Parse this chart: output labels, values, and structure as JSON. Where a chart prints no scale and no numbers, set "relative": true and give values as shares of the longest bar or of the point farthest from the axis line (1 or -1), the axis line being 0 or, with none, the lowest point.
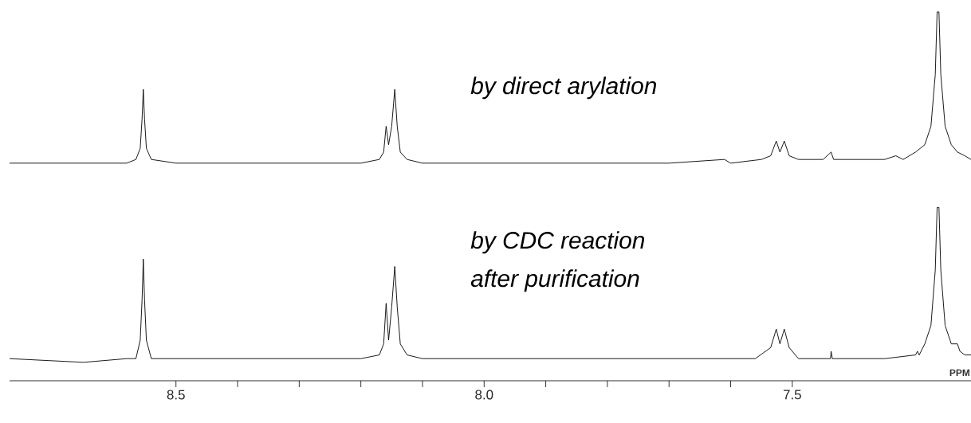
{
  "chart_data": {
    "type": "line",
    "relative": true,
    "tick_labels": "x",
    "xlim": [
      8.77,
      7.21
    ],
    "xlabel": "PPM",
    "xticks": [
      8.5,
      {
        "value": 8.0,
        "label": "8.0"
      },
      7.5
    ],
    "annotations": [
      "by direct arylation",
      "by CDC reaction",
      "after purification"
    ],
    "series": [
      {
        "color": "#000000",
        "x": [
          8.77,
          8.7,
          8.62,
          8.58,
          8.565,
          8.558,
          8.555,
          8.553,
          8.551,
          8.548,
          8.54,
          8.5,
          8.4,
          8.3,
          8.2,
          8.17,
          8.163,
          8.159,
          8.155,
          8.15,
          8.145,
          8.141,
          8.136,
          8.125,
          8.1,
          8.0,
          7.9,
          7.8,
          7.7,
          7.61,
          7.6,
          7.55,
          7.535,
          7.526,
          7.52,
          7.513,
          7.505,
          7.49,
          7.45,
          7.437,
          7.433,
          7.4,
          7.35,
          7.332,
          7.32,
          7.3,
          7.285,
          7.275,
          7.268,
          7.265,
          7.262,
          7.259,
          7.252,
          7.242,
          7.232,
          7.22,
          7.21
        ],
        "values": [
          0.59,
          0.59,
          0.59,
          0.59,
          0.6,
          0.63,
          0.71,
          0.79,
          0.71,
          0.63,
          0.6,
          0.59,
          0.59,
          0.59,
          0.59,
          0.6,
          0.62,
          0.69,
          0.64,
          0.69,
          0.79,
          0.69,
          0.62,
          0.6,
          0.59,
          0.59,
          0.59,
          0.59,
          0.59,
          0.6,
          0.59,
          0.6,
          0.61,
          0.65,
          0.62,
          0.65,
          0.61,
          0.6,
          0.6,
          0.62,
          0.6,
          0.6,
          0.6,
          0.61,
          0.6,
          0.62,
          0.64,
          0.69,
          0.83,
          1.0,
          1.0,
          0.83,
          0.69,
          0.64,
          0.62,
          0.61,
          0.6
        ]
      },
      {
        "color": "#000000",
        "x": [
          8.77,
          8.65,
          8.58,
          8.565,
          8.558,
          8.555,
          8.553,
          8.551,
          8.548,
          8.54,
          8.45,
          8.3,
          8.2,
          8.17,
          8.163,
          8.159,
          8.155,
          8.15,
          8.145,
          8.141,
          8.136,
          8.125,
          8.1,
          8.0,
          7.8,
          7.65,
          7.56,
          7.535,
          7.526,
          7.52,
          7.513,
          7.505,
          7.49,
          7.45,
          7.438,
          7.437,
          7.435,
          7.35,
          7.3,
          7.297,
          7.294,
          7.285,
          7.275,
          7.268,
          7.265,
          7.262,
          7.259,
          7.252,
          7.242,
          7.232,
          7.228,
          7.22,
          7.21
        ],
        "values": [
          0.06,
          0.05,
          0.06,
          0.06,
          0.11,
          0.22,
          0.33,
          0.22,
          0.11,
          0.06,
          0.06,
          0.06,
          0.06,
          0.07,
          0.1,
          0.21,
          0.11,
          0.2,
          0.31,
          0.2,
          0.1,
          0.07,
          0.06,
          0.06,
          0.06,
          0.06,
          0.06,
          0.09,
          0.14,
          0.1,
          0.14,
          0.09,
          0.06,
          0.06,
          0.06,
          0.08,
          0.06,
          0.06,
          0.07,
          0.08,
          0.07,
          0.1,
          0.15,
          0.3,
          0.47,
          0.47,
          0.3,
          0.15,
          0.1,
          0.1,
          0.08,
          0.07,
          0.07
        ]
      }
    ]
  }
}
